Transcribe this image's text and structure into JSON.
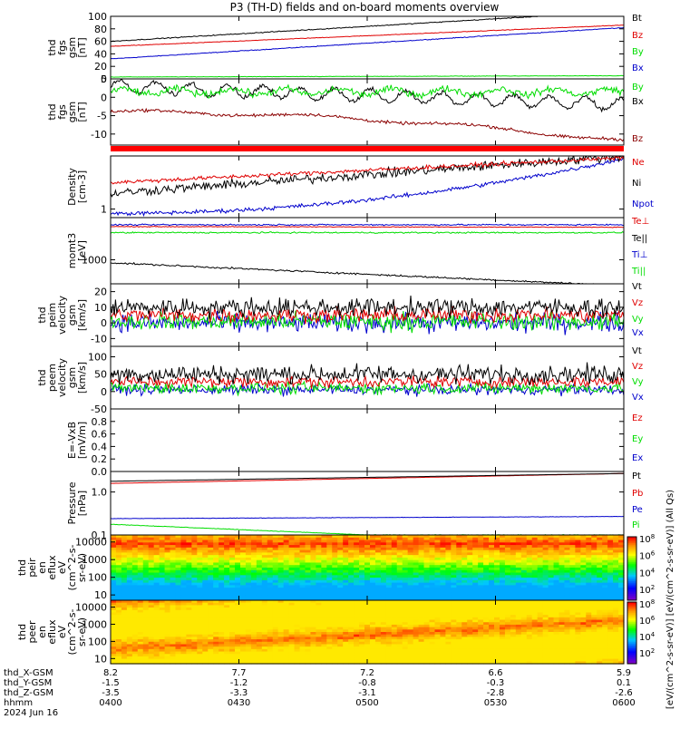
{
  "title": "P3 (TH-D) fields and on-board moments overview",
  "colors": {
    "black": "#000000",
    "red": "#e00000",
    "green": "#00dd00",
    "blue": "#0000cc",
    "darkred": "#8b0000"
  },
  "chart_data": [
    {
      "id": "fgs_gsm",
      "type": "line",
      "ylabel": [
        "thd",
        "fgs",
        "gsm",
        "[nT]"
      ],
      "ylim": [
        0,
        100
      ],
      "ticks": [
        0,
        20,
        40,
        60,
        80,
        100
      ],
      "series": [
        {
          "name": "Bt",
          "color": "black"
        },
        {
          "name": "Bz",
          "color": "red"
        },
        {
          "name": "By",
          "color": "green"
        },
        {
          "name": "Bx",
          "color": "blue"
        }
      ]
    },
    {
      "id": "fgs_dsl",
      "type": "line",
      "ylabel": [
        "thd",
        "fgs",
        "gsm",
        "[nT]"
      ],
      "ylim": [
        -13,
        5
      ],
      "ticks": [
        -10,
        -5,
        0,
        5
      ],
      "series": [
        {
          "name": "By",
          "color": "green"
        },
        {
          "name": "Bx",
          "color": "black"
        },
        {
          "name": "Bz",
          "color": "darkred"
        }
      ]
    },
    {
      "id": "density",
      "type": "line",
      "ylabel": [
        "Density",
        "[cm-3]"
      ],
      "ylim": [
        0.8,
        4
      ],
      "ticks": [
        1
      ],
      "series": [
        {
          "name": "Ne",
          "color": "red"
        },
        {
          "name": "Ni",
          "color": "black"
        },
        {
          "name": "Npot",
          "color": "blue"
        }
      ]
    },
    {
      "id": "temperature",
      "type": "line",
      "ylabel": [
        "momt3",
        "[eV]"
      ],
      "ylim": [
        400,
        5000
      ],
      "ticks": [
        1000
      ],
      "series": [
        {
          "name": "Te⊥",
          "color": "red"
        },
        {
          "name": "Te||",
          "color": "black"
        },
        {
          "name": "Ti⊥",
          "color": "blue"
        },
        {
          "name": "Ti||",
          "color": "green"
        }
      ]
    },
    {
      "id": "peim_velocity",
      "type": "line",
      "ylabel": [
        "thd",
        "peim",
        "velocity",
        "gsm",
        "[km/s]"
      ],
      "ylim": [
        -15,
        25
      ],
      "ticks": [
        -10,
        0,
        10,
        20
      ],
      "series": [
        {
          "name": "Vt",
          "color": "black"
        },
        {
          "name": "Vz",
          "color": "red"
        },
        {
          "name": "Vy",
          "color": "green"
        },
        {
          "name": "Vx",
          "color": "blue"
        }
      ]
    },
    {
      "id": "peem_velocity",
      "type": "line",
      "ylabel": [
        "thd",
        "peem",
        "velocity",
        "gsm",
        "[km/s]"
      ],
      "ylim": [
        -50,
        130
      ],
      "ticks": [
        -50,
        0,
        50,
        100
      ],
      "series": [
        {
          "name": "Vt",
          "color": "black"
        },
        {
          "name": "Vz",
          "color": "red"
        },
        {
          "name": "Vy",
          "color": "green"
        },
        {
          "name": "Vx",
          "color": "blue"
        }
      ]
    },
    {
      "id": "efield",
      "type": "line",
      "ylabel": [
        "E=-VxB",
        "[mV/m]"
      ],
      "ylim": [
        0,
        1
      ],
      "ticks": [
        0.0,
        0.2,
        0.4,
        0.6,
        0.8
      ],
      "series": [
        {
          "name": "Ez",
          "color": "red"
        },
        {
          "name": "Ey",
          "color": "green"
        },
        {
          "name": "Ex",
          "color": "blue"
        }
      ]
    },
    {
      "id": "pressure",
      "type": "line",
      "ylabel": [
        "Pressure",
        "[nPa]"
      ],
      "ylim": [
        0.1,
        3
      ],
      "ticks": [
        0.1,
        1.0
      ],
      "series": [
        {
          "name": "Pt",
          "color": "black"
        },
        {
          "name": "Pb",
          "color": "red"
        },
        {
          "name": "Pe",
          "color": "blue"
        },
        {
          "name": "Pi",
          "color": "green"
        }
      ]
    },
    {
      "id": "peir_spec",
      "type": "heatmap",
      "ylabel": [
        "thd",
        "peir",
        "en",
        "eflux",
        "eV",
        "(cm^2-s-",
        "sr-eV)"
      ],
      "ylim": [
        5,
        25000
      ],
      "ticks": [
        10,
        100,
        1000,
        10000
      ]
    },
    {
      "id": "peer_spec",
      "type": "heatmap",
      "ylabel": [
        "thd",
        "peer",
        "en",
        "eflux",
        "eV",
        "(cm^2-s-",
        "sr-eV)"
      ],
      "ylim": [
        5,
        25000
      ],
      "ticks": [
        10,
        100,
        1000,
        10000
      ]
    }
  ],
  "colorbar": {
    "label": "[eV/(cm^2-s-sr-eV)] [eV/(cm^2-s-sr-eV)] (All Qs)",
    "tick_exponents": [
      "2",
      "4",
      "6",
      "8",
      "2",
      "4",
      "6",
      "8"
    ]
  },
  "xaxis": {
    "range_hours": [
      4.0,
      6.0
    ],
    "rows": [
      {
        "label": "thd_X-GSM",
        "values": [
          "8.2",
          "7.7",
          "7.2",
          "6.6",
          "5.9"
        ]
      },
      {
        "label": "thd_Y-GSM",
        "values": [
          "-1.5",
          "-1.2",
          "-0.8",
          "-0.3",
          "0.1"
        ]
      },
      {
        "label": "thd_Z-GSM",
        "values": [
          "-3.5",
          "-3.3",
          "-3.1",
          "-2.8",
          "-2.6"
        ]
      },
      {
        "label": "hhmm",
        "values": [
          "0400",
          "0430",
          "0500",
          "0530",
          "0600"
        ]
      }
    ],
    "date": "2024 Jun 16"
  }
}
